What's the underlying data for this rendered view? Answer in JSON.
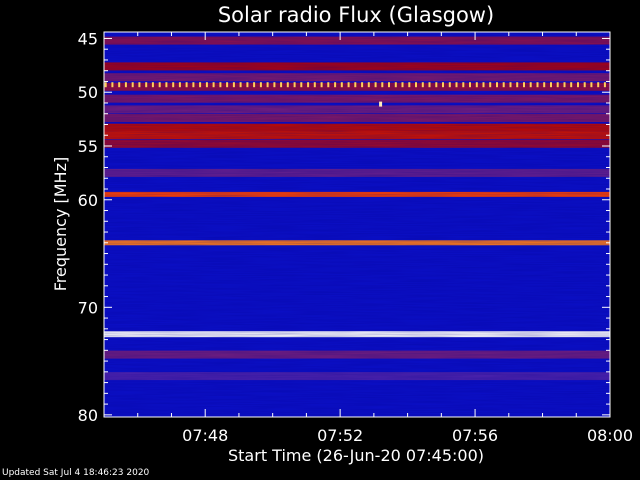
{
  "chart_data": {
    "type": "heatmap",
    "title": "Solar radio Flux (Glasgow)",
    "xlabel": "Start Time (26-Jun-20 07:45:00)",
    "ylabel": "Frequency [MHz]",
    "x_ticks": [
      "07:48",
      "07:52",
      "07:56",
      "08:00"
    ],
    "x_tick_minutes": [
      3,
      7,
      11,
      15
    ],
    "x_range_minutes": [
      0,
      15
    ],
    "y_ticks": [
      45,
      50,
      55,
      60,
      70,
      80
    ],
    "y_range_mhz": [
      44.4,
      80.2
    ],
    "y_inverted": true,
    "colormap": [
      "#000046",
      "#0000b4",
      "#1e28e6",
      "#781e78",
      "#b40000",
      "#ff3c00",
      "#ffc83c",
      "#ffffff"
    ],
    "background_intensity": 0.2,
    "bands": [
      {
        "freq_mhz": 45.2,
        "intensity": 0.48
      },
      {
        "freq_mhz": 47.6,
        "intensity": 0.55
      },
      {
        "freq_mhz": 48.6,
        "intensity": 0.44
      },
      {
        "freq_mhz": 49.5,
        "intensity": 0.5
      },
      {
        "freq_mhz": 50.6,
        "intensity": 0.45
      },
      {
        "freq_mhz": 51.6,
        "intensity": 0.42
      },
      {
        "freq_mhz": 52.4,
        "intensity": 0.45
      },
      {
        "freq_mhz": 53.3,
        "intensity": 0.6
      },
      {
        "freq_mhz": 54.0,
        "intensity": 0.62
      },
      {
        "freq_mhz": 54.8,
        "intensity": 0.52
      },
      {
        "freq_mhz": 57.5,
        "intensity": 0.4
      },
      {
        "freq_mhz": 59.5,
        "intensity": 0.72
      },
      {
        "freq_mhz": 64.0,
        "intensity": 0.78
      },
      {
        "freq_mhz": 72.5,
        "intensity": 1.0
      },
      {
        "freq_mhz": 74.4,
        "intensity": 0.42
      },
      {
        "freq_mhz": 76.4,
        "intensity": 0.36
      }
    ],
    "periodic_bursts": {
      "freq_mhz": 49.3,
      "period_minutes": 0.2,
      "intensity": 0.88
    },
    "isolated_bursts": [
      {
        "time_minutes": 8.2,
        "freq_mhz": 51.1,
        "intensity": 0.95
      }
    ]
  },
  "footer": "Updated Sat Jul  4 18:46:23 2020"
}
